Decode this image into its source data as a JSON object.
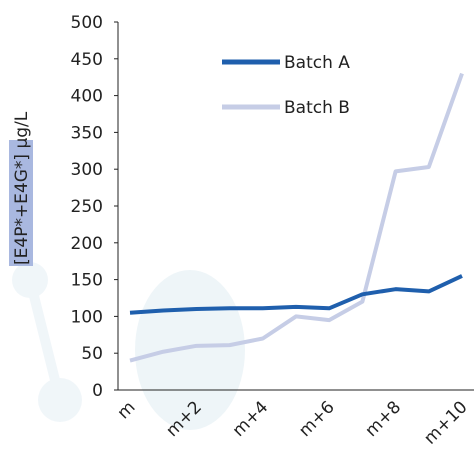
{
  "chart_data": {
    "type": "line",
    "y_label": "[E4P*+E4G*] µg/L",
    "categories": [
      "m",
      null,
      "m+2",
      null,
      "m+4",
      null,
      "m+6",
      null,
      "m+8",
      null,
      "m+10"
    ],
    "series": [
      {
        "name": "Batch A",
        "color": "#1f5fad",
        "values": [
          105,
          108,
          110,
          111,
          111,
          113,
          111,
          130,
          137,
          134,
          155
        ]
      },
      {
        "name": "Batch B",
        "color": "#c6cde6",
        "values": [
          40,
          52,
          60,
          61,
          70,
          100,
          95,
          120,
          297,
          303,
          430
        ]
      }
    ],
    "ylim": [
      0,
      500
    ],
    "yticks": [
      0,
      50,
      100,
      150,
      200,
      250,
      300,
      350,
      400,
      450,
      500
    ]
  }
}
